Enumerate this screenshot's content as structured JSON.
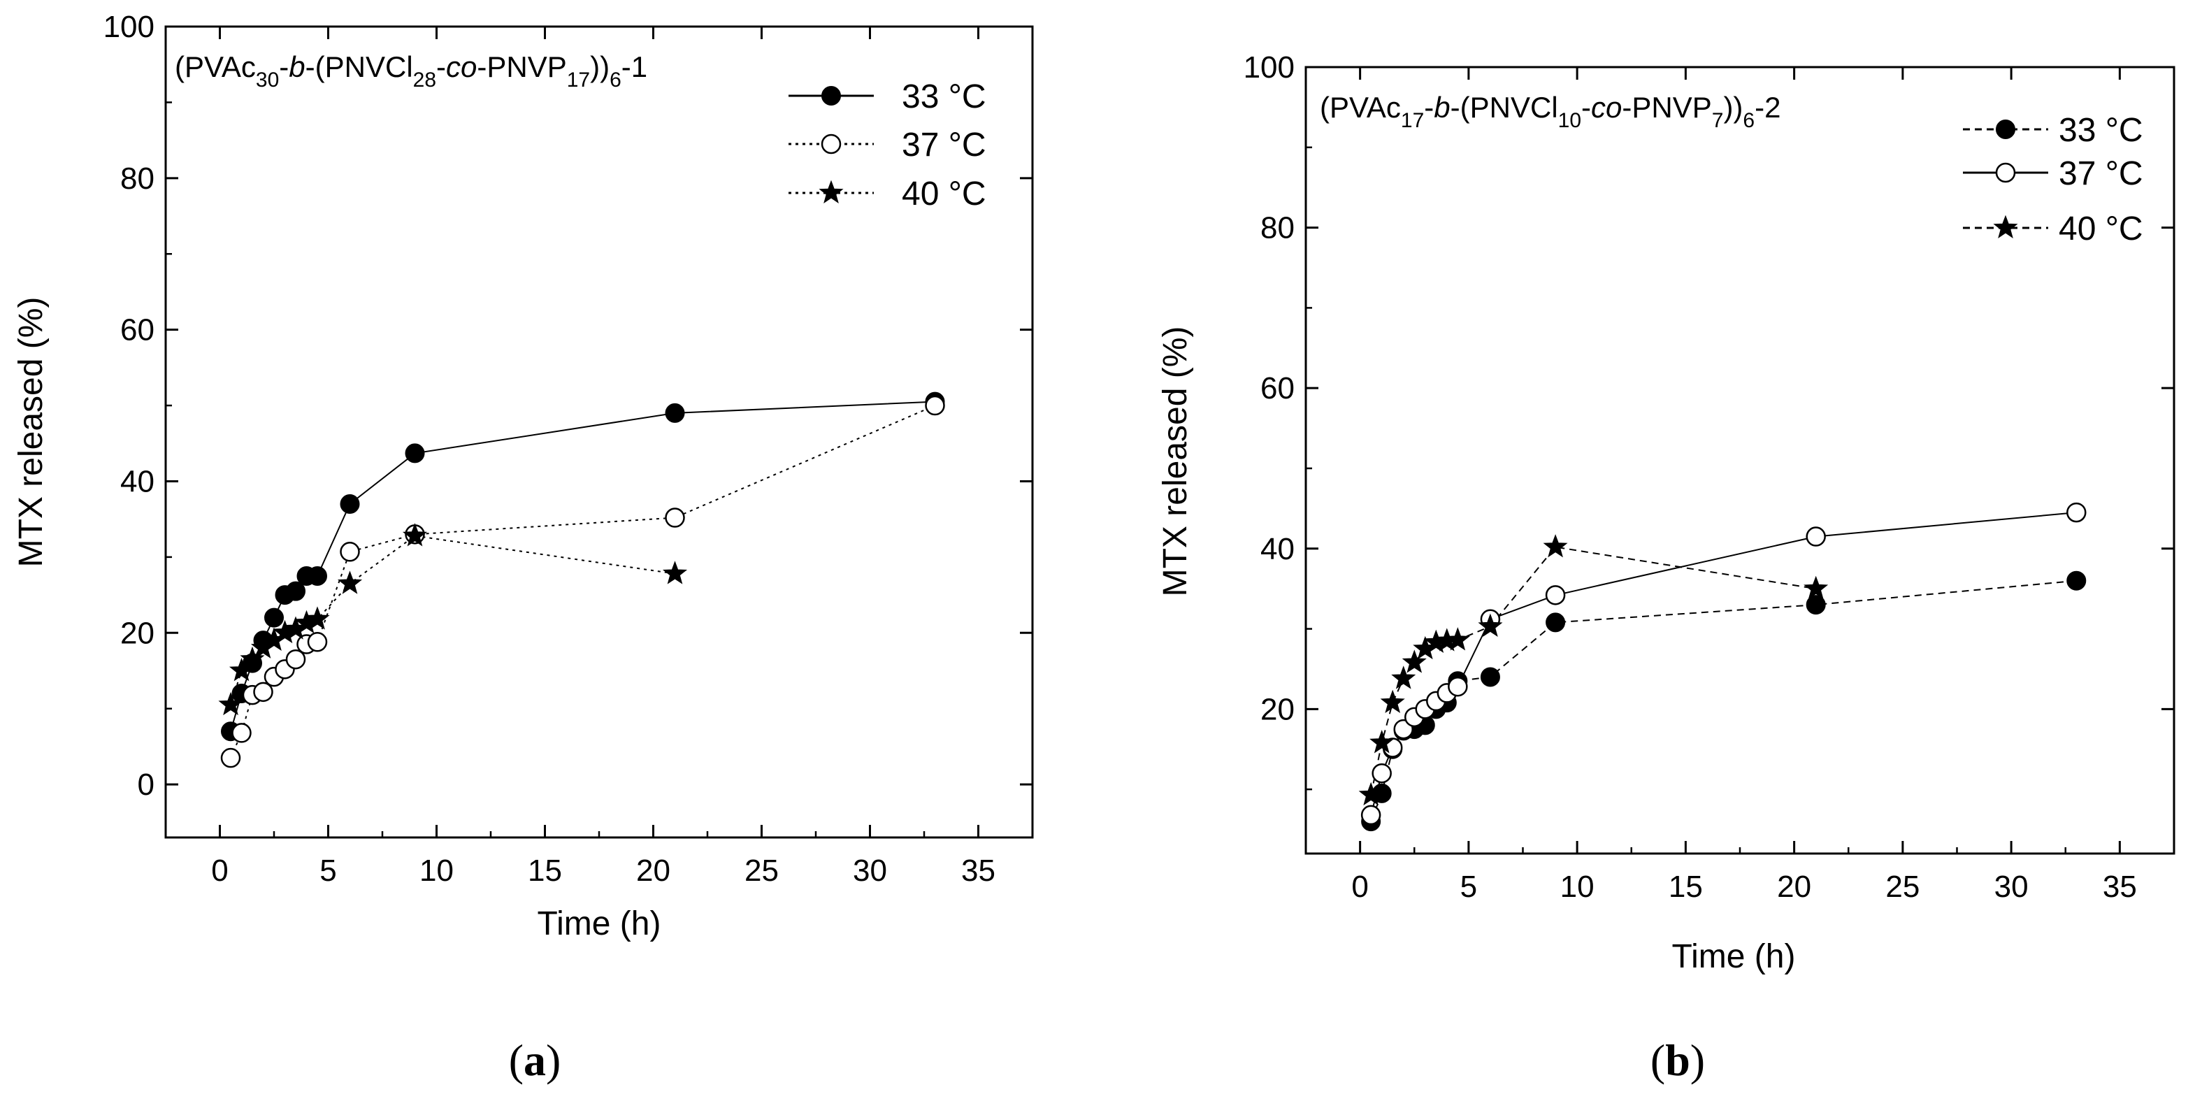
{
  "chart_data": [
    {
      "type": "line",
      "panel_label": "a",
      "annotation": {
        "prefix": "(PVAc",
        "s1": "30",
        "t1": "-",
        "it1": "b",
        "t2": "-(PNVCl",
        "s2": "28",
        "t3": "-",
        "it2": "co",
        "t4": "-PNVP",
        "s3": "17",
        "t5": "))",
        "s4": "6",
        "t6": "-1"
      },
      "xlabel": "Time (h)",
      "ylabel": "MTX released (%)",
      "xlim": [
        -2.5,
        37.5
      ],
      "ylim": [
        -7,
        100
      ],
      "xticks": [
        0,
        5,
        10,
        15,
        20,
        25,
        30,
        35
      ],
      "yticks": [
        0,
        20,
        40,
        60,
        80,
        100
      ],
      "legend_position": "top-right",
      "series": [
        {
          "name": "33 °C",
          "marker": "filled-circle",
          "line": "solid",
          "points": [
            [
              0.5,
              7
            ],
            [
              1,
              12
            ],
            [
              1.5,
              16
            ],
            [
              2,
              19
            ],
            [
              2.5,
              22
            ],
            [
              3,
              25
            ],
            [
              3.5,
              25.5
            ],
            [
              4,
              27.5
            ],
            [
              4.5,
              27.5
            ],
            [
              6,
              37
            ],
            [
              9,
              43.7
            ],
            [
              21,
              49
            ],
            [
              33,
              50.5
            ]
          ]
        },
        {
          "name": "37 °C",
          "marker": "open-circle",
          "line": "dotted",
          "points": [
            [
              0.5,
              3.5
            ],
            [
              1,
              6.8
            ],
            [
              1.5,
              11.8
            ],
            [
              2,
              12.2
            ],
            [
              2.5,
              14.2
            ],
            [
              3,
              15.2
            ],
            [
              3.5,
              16.5
            ],
            [
              4,
              18.5
            ],
            [
              4.5,
              18.8
            ],
            [
              6,
              30.7
            ],
            [
              9,
              33
            ],
            [
              21,
              35.2
            ],
            [
              33,
              50
            ]
          ]
        },
        {
          "name": "40 °C",
          "marker": "star",
          "line": "dotted",
          "points": [
            [
              0.5,
              10.5
            ],
            [
              1,
              15
            ],
            [
              1.5,
              16.5
            ],
            [
              2,
              18
            ],
            [
              2.5,
              19
            ],
            [
              3,
              20
            ],
            [
              3.5,
              20.5
            ],
            [
              4,
              21.3
            ],
            [
              4.5,
              21.8
            ],
            [
              6,
              26.5
            ],
            [
              9,
              32.8
            ],
            [
              21,
              27.8
            ]
          ]
        }
      ]
    },
    {
      "type": "line",
      "panel_label": "b",
      "annotation": {
        "prefix": "(PVAc",
        "s1": "17",
        "t1": "-",
        "it1": "b",
        "t2": "-(PNVCl",
        "s2": "10",
        "t3": "-",
        "it2": "co",
        "t4": "-PNVP",
        "s3": "7",
        "t5": "))",
        "s4": "6",
        "t6": "-2"
      },
      "xlabel": "Time (h)",
      "ylabel": "MTX released (%)",
      "xlim": [
        -2.5,
        37.5
      ],
      "ylim": [
        2,
        100
      ],
      "xticks": [
        0,
        5,
        10,
        15,
        20,
        25,
        30,
        35
      ],
      "yticks": [
        20,
        40,
        60,
        80,
        100
      ],
      "legend_position": "top-right",
      "series": [
        {
          "name": "33 °C",
          "marker": "filled-circle",
          "line": "dashed",
          "points": [
            [
              0.5,
              6
            ],
            [
              1,
              9.5
            ],
            [
              1.5,
              15
            ],
            [
              2,
              17.3
            ],
            [
              2.5,
              17.5
            ],
            [
              3,
              18
            ],
            [
              3.5,
              20
            ],
            [
              4,
              20.8
            ],
            [
              4.5,
              23.5
            ],
            [
              6,
              24
            ],
            [
              9,
              30.8
            ],
            [
              21,
              33
            ],
            [
              33,
              36
            ]
          ]
        },
        {
          "name": "37 °C",
          "marker": "open-circle",
          "line": "solid",
          "points": [
            [
              0.5,
              6.8
            ],
            [
              1,
              12
            ],
            [
              1.5,
              15.2
            ],
            [
              2,
              17.5
            ],
            [
              2.5,
              19
            ],
            [
              3,
              20
            ],
            [
              3.5,
              21
            ],
            [
              4,
              22
            ],
            [
              4.5,
              22.8
            ],
            [
              6,
              31.2
            ],
            [
              9,
              34.2
            ],
            [
              21,
              41.5
            ],
            [
              33,
              44.5
            ]
          ]
        },
        {
          "name": "40 °C",
          "marker": "star",
          "line": "dashed",
          "points": [
            [
              0.5,
              9.3
            ],
            [
              1,
              15.8
            ],
            [
              1.5,
              20.8
            ],
            [
              2,
              23.8
            ],
            [
              2.5,
              25.8
            ],
            [
              3,
              27.5
            ],
            [
              3.5,
              28.3
            ],
            [
              4,
              28.5
            ],
            [
              4.5,
              28.6
            ],
            [
              6,
              30.3
            ],
            [
              9,
              40.2
            ],
            [
              21,
              35
            ]
          ]
        }
      ]
    }
  ]
}
